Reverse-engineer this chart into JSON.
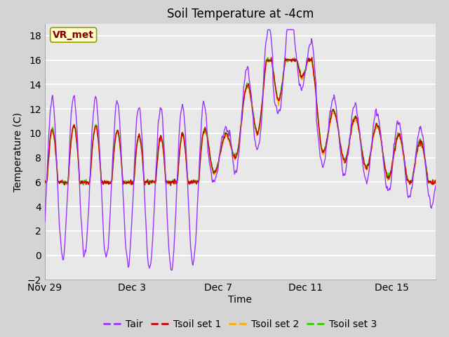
{
  "title": "Soil Temperature at -4cm",
  "xlabel": "Time",
  "ylabel": "Temperature (C)",
  "ylim": [
    -2,
    19
  ],
  "yticks": [
    -2,
    0,
    2,
    4,
    6,
    8,
    10,
    12,
    14,
    16,
    18
  ],
  "xtick_labels": [
    "Nov 29",
    "Dec 3",
    "Dec 7",
    "Dec 11",
    "Dec 15"
  ],
  "xtick_positions": [
    0,
    4,
    8,
    12,
    16
  ],
  "total_days": 18,
  "fig_bg_color": "#d4d4d4",
  "plot_bg_color": "#e8e8e8",
  "grid_color": "#ffffff",
  "line_colors": {
    "Tair": "#9933ff",
    "Tsoil1": "#cc0000",
    "Tsoil2": "#ffaa00",
    "Tsoil3": "#33cc00"
  },
  "annotation_text": "VR_met",
  "annotation_bg": "#ffffcc",
  "annotation_border": "#999900",
  "annotation_text_color": "#880000",
  "legend_labels": [
    "Tair",
    "Tsoil set 1",
    "Tsoil set 2",
    "Tsoil set 3"
  ],
  "title_fontsize": 12,
  "axis_label_fontsize": 10,
  "tick_fontsize": 10,
  "legend_fontsize": 10,
  "line_width": 1.0
}
